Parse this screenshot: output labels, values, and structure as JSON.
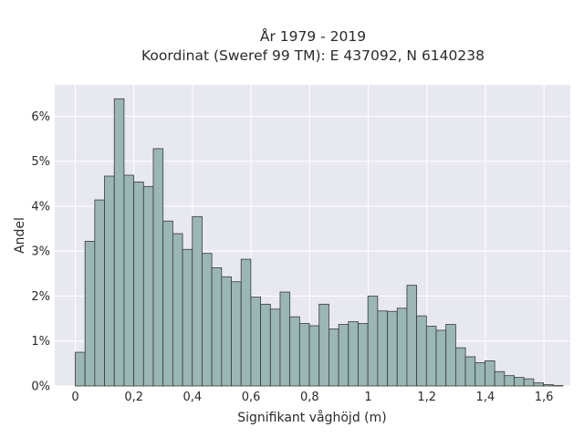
{
  "chart_data": {
    "type": "bar",
    "title_lines": [
      "År 1979 - 2019",
      "Koordinat (Sweref 99 TM): E 437092, N 6140238"
    ],
    "xlabel": "Signifikant våghöjd (m)",
    "ylabel": "Andel",
    "bin_start": 0.0,
    "bin_width": 0.0333,
    "values": [
      0.75,
      3.22,
      4.14,
      4.67,
      6.39,
      4.69,
      4.54,
      4.44,
      5.28,
      3.67,
      3.39,
      3.04,
      3.77,
      2.95,
      2.63,
      2.43,
      2.32,
      2.82,
      1.98,
      1.82,
      1.71,
      2.09,
      1.54,
      1.39,
      1.34,
      1.82,
      1.27,
      1.37,
      1.43,
      1.39,
      2.0,
      1.67,
      1.66,
      1.73,
      2.24,
      1.56,
      1.33,
      1.24,
      1.37,
      0.85,
      0.65,
      0.52,
      0.56,
      0.32,
      0.23,
      0.19,
      0.16,
      0.07,
      0.03,
      0.01
    ],
    "xlim": [
      -0.07,
      1.69
    ],
    "ylim": [
      0,
      6.7
    ],
    "x_ticks": [
      0,
      0.2,
      0.4,
      0.6,
      0.8,
      1.0,
      1.2,
      1.4,
      1.6
    ],
    "x_tick_labels": [
      "0",
      "0,2",
      "0,4",
      "0,6",
      "0,8",
      "1",
      "1,2",
      "1,4",
      "1,6"
    ],
    "y_ticks": [
      0,
      1,
      2,
      3,
      4,
      5,
      6
    ],
    "y_tick_labels": [
      "0%",
      "1%",
      "2%",
      "3%",
      "4%",
      "5%",
      "6%"
    ],
    "grid": true,
    "colors": {
      "bar_fill": "#9ab6b5",
      "bar_edge": "#3a3a3a",
      "plot_bg": "#e8e8f1",
      "grid": "#ffffff"
    }
  }
}
